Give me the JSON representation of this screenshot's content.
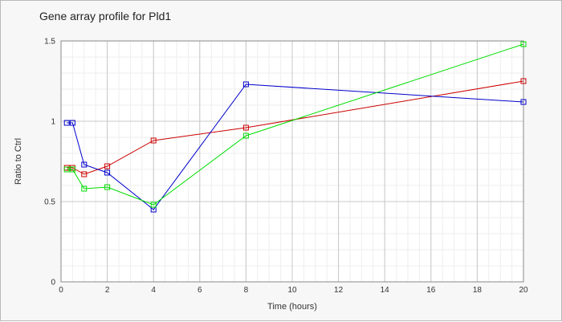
{
  "chart_data": {
    "type": "line",
    "title": "Gene array profile for Pld1",
    "xlabel": "Time (hours)",
    "ylabel": "Ratio to Ctrl",
    "xlim": [
      0,
      20
    ],
    "ylim": [
      0,
      1.5
    ],
    "xticks": [
      0,
      2,
      4,
      6,
      8,
      10,
      12,
      14,
      16,
      18,
      20
    ],
    "xtick_labels": [
      "0",
      "2",
      "4",
      "6",
      "8",
      "10",
      "12",
      "14",
      "16",
      "18",
      "20"
    ],
    "yticks": [
      0,
      0.5,
      1,
      1.5
    ],
    "ytick_labels": [
      "0",
      "0.5",
      "1",
      "1.5"
    ],
    "grid": true,
    "x": [
      0.25,
      0.5,
      1,
      2,
      4,
      8,
      20
    ],
    "series": [
      {
        "color": "#cc0000",
        "values": [
          0.71,
          0.71,
          0.67,
          0.72,
          0.88,
          0.96,
          1.25
        ]
      },
      {
        "color": "#0000cc",
        "values": [
          0.99,
          0.99,
          0.73,
          0.68,
          0.45,
          1.23,
          1.12
        ]
      },
      {
        "color": "#00dd00",
        "values": [
          0.7,
          0.7,
          0.58,
          0.59,
          0.48,
          0.91,
          1.48
        ]
      }
    ]
  }
}
